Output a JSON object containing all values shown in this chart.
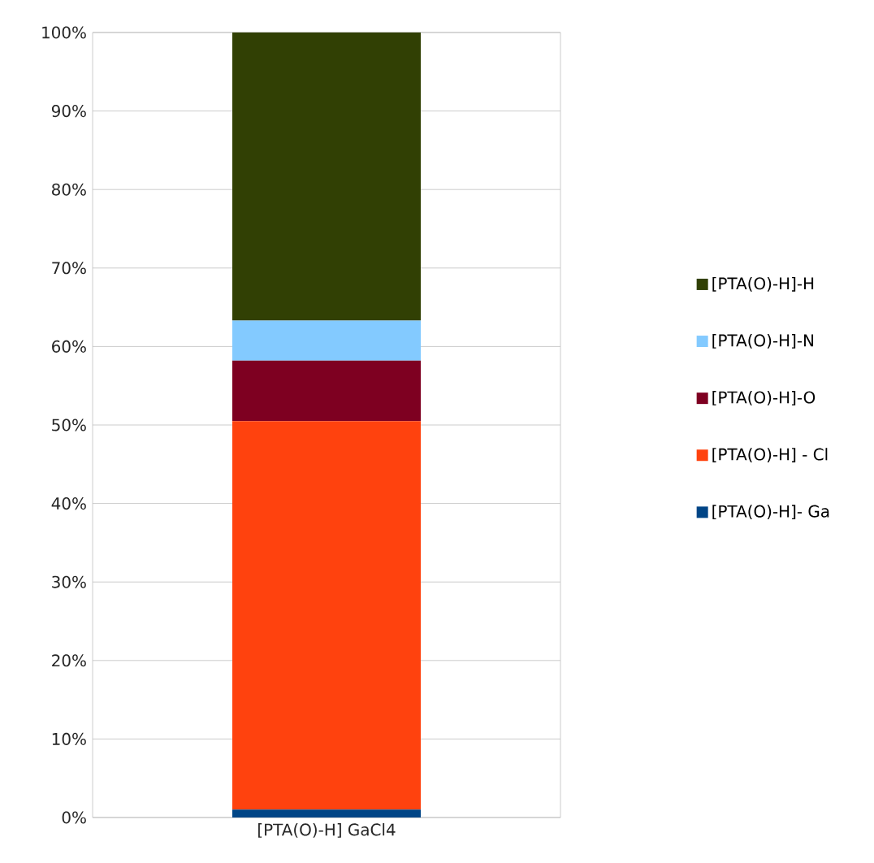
{
  "chart_data": {
    "type": "bar",
    "stacked": true,
    "categories": [
      "[PTA(O)-H] GaCl4"
    ],
    "series": [
      {
        "name": "[PTA(O)-H]- Ga",
        "color": "#004586",
        "values": [
          1.0
        ]
      },
      {
        "name": "[PTA(O)-H] - Cl",
        "color": "#ff420e",
        "values": [
          49.5
        ]
      },
      {
        "name": "[PTA(O)-H]-O",
        "color": "#7e0021",
        "values": [
          7.7
        ]
      },
      {
        "name": "[PTA(O)-H]-N",
        "color": "#83caff",
        "values": [
          5.1
        ]
      },
      {
        "name": "[PTA(O)-H]-H",
        "color": "#314004",
        "values": [
          36.7
        ]
      }
    ],
    "ylim": [
      0,
      100
    ],
    "yticks": [
      {
        "value": 0,
        "label": "0%"
      },
      {
        "value": 10,
        "label": "10%"
      },
      {
        "value": 20,
        "label": "20%"
      },
      {
        "value": 30,
        "label": "30%"
      },
      {
        "value": 40,
        "label": "40%"
      },
      {
        "value": 50,
        "label": "50%"
      },
      {
        "value": 60,
        "label": "60%"
      },
      {
        "value": 70,
        "label": "70%"
      },
      {
        "value": 80,
        "label": "80%"
      },
      {
        "value": 90,
        "label": "90%"
      },
      {
        "value": 100,
        "label": "100%"
      }
    ],
    "grid": "y",
    "legend": "right"
  }
}
